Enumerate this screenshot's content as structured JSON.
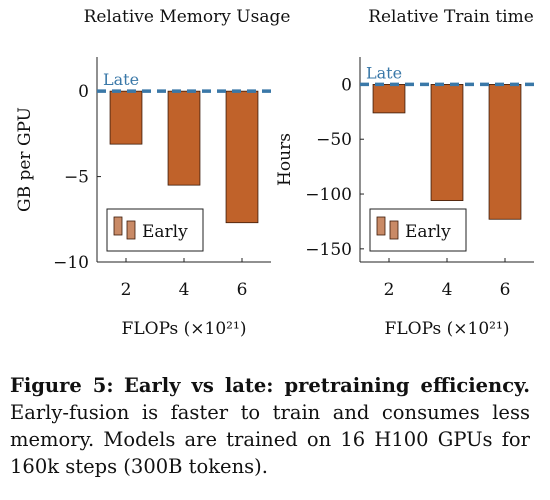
{
  "chart_data": [
    {
      "type": "bar",
      "title": "Relative Memory Usage",
      "xlabel": "FLOPs (×10²¹)",
      "ylabel": "GB per GPU",
      "categories": [
        "2",
        "4",
        "6"
      ],
      "ylim": [
        -10,
        2
      ],
      "yticks": [
        {
          "value": 0,
          "label": "0"
        },
        {
          "value": -5,
          "label": "−5"
        },
        {
          "value": -10,
          "label": "−10"
        }
      ],
      "series": [
        {
          "name": "Early",
          "values": [
            -3.1,
            -5.5,
            -7.7
          ],
          "color": "#c0622a"
        }
      ],
      "reference_line": {
        "name": "Late",
        "value": 0,
        "color": "#3a78a8",
        "style": "dashed"
      },
      "legend": "bottom-left",
      "grid": false
    },
    {
      "type": "bar",
      "title": "Relative Train time",
      "xlabel": "FLOPs (×10²¹)",
      "ylabel": "Hours",
      "categories": [
        "2",
        "4",
        "6"
      ],
      "ylim": [
        -162,
        25
      ],
      "yticks": [
        {
          "value": 0,
          "label": "0"
        },
        {
          "value": -50,
          "label": "−50"
        },
        {
          "value": -100,
          "label": "−100"
        },
        {
          "value": -150,
          "label": "−150"
        }
      ],
      "series": [
        {
          "name": "Early",
          "values": [
            -26,
            -106,
            -123
          ],
          "color": "#c0622a"
        }
      ],
      "reference_line": {
        "name": "Late",
        "value": 0,
        "color": "#3a78a8",
        "style": "dashed"
      },
      "legend": "bottom-left",
      "grid": false
    }
  ],
  "caption": {
    "label": "Figure 5:",
    "title": "Early vs late: pretraining efficiency.",
    "body": "Early-fusion is faster to train and consumes less memory. Models are trained on 16 H100 GPUs for 160k steps (300B tokens)."
  }
}
